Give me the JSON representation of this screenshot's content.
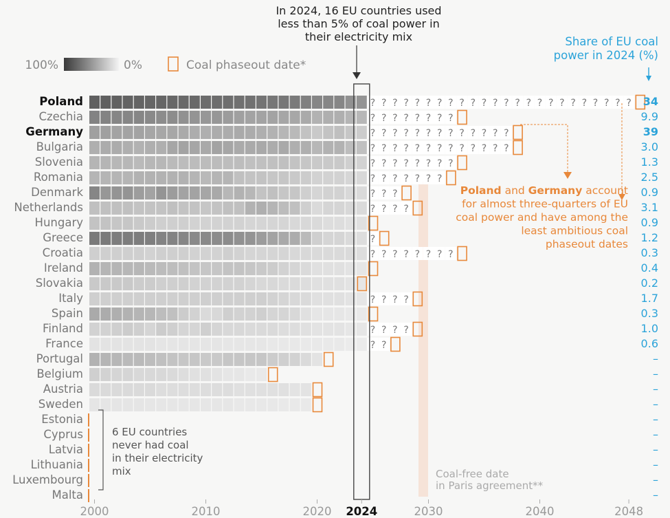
{
  "annotation_top": [
    "In 2024, 16 EU countries used",
    "less than 5% of coal power in",
    "their electricity mix"
  ],
  "share_header": [
    "Share of EU coal",
    "power in 2024 (%)"
  ],
  "legend": {
    "max_label": "100%",
    "min_label": "0%",
    "phaseout_label": "Coal phaseout date*"
  },
  "callout": {
    "lines": [
      [
        {
          "text": "Poland",
          "bold": true
        },
        {
          "text": " and ",
          "bold": false
        },
        {
          "text": "Germany",
          "bold": true
        },
        {
          "text": " account",
          "bold": false
        }
      ],
      [
        {
          "text": "for almost three-quarters of EU",
          "bold": false
        }
      ],
      [
        {
          "text": "coal power and have among the",
          "bold": false
        }
      ],
      [
        {
          "text": "least ambitious coal",
          "bold": false
        }
      ],
      [
        {
          "text": "phaseout dates",
          "bold": false
        }
      ]
    ]
  },
  "never_note": [
    "6 EU countries",
    "never had coal",
    "in their electricity",
    "mix"
  ],
  "paris_note": [
    "Coal-free date",
    "in Paris agreement**"
  ],
  "colors": {
    "accent": "#e8883a",
    "share": "#2ba3d9",
    "cell_dark": "#5a5a5a",
    "cell_light": "#ececec",
    "paris_band": "#f6e3d8"
  },
  "chart_data": {
    "type": "heatmap",
    "x_ticks": [
      "2000",
      "2010",
      "2020",
      "2024",
      "2030",
      "2040",
      "2048"
    ],
    "highlight_year": 2024,
    "paris_year": 2030,
    "value_scale": "coal share of electricity mix, 0 (light) to 1 (dark)",
    "countries": [
      {
        "name": "Poland",
        "bold": true,
        "phaseout": 2049,
        "share": "34",
        "intensity": [
          0.96,
          0.96,
          0.95,
          0.94,
          0.93,
          0.92,
          0.92,
          0.91,
          0.9,
          0.9,
          0.88,
          0.87,
          0.86,
          0.85,
          0.84,
          0.82,
          0.8,
          0.8,
          0.78,
          0.74,
          0.7,
          0.7,
          0.7,
          0.62,
          0.6
        ]
      },
      {
        "name": "Czechia",
        "bold": false,
        "phaseout": 2033,
        "share": "9.9",
        "intensity": [
          0.72,
          0.72,
          0.7,
          0.7,
          0.7,
          0.68,
          0.66,
          0.66,
          0.62,
          0.6,
          0.58,
          0.58,
          0.55,
          0.52,
          0.5,
          0.5,
          0.5,
          0.48,
          0.47,
          0.45,
          0.4,
          0.42,
          0.42,
          0.38,
          0.36
        ]
      },
      {
        "name": "Germany",
        "bold": true,
        "phaseout": 2038,
        "share": "39",
        "intensity": [
          0.52,
          0.52,
          0.5,
          0.5,
          0.5,
          0.48,
          0.47,
          0.47,
          0.45,
          0.43,
          0.42,
          0.44,
          0.44,
          0.45,
          0.44,
          0.42,
          0.4,
          0.37,
          0.35,
          0.29,
          0.24,
          0.28,
          0.31,
          0.26,
          0.22
        ]
      },
      {
        "name": "Bulgaria",
        "bold": false,
        "phaseout": 2038,
        "share": "3.0",
        "intensity": [
          0.42,
          0.44,
          0.44,
          0.42,
          0.4,
          0.42,
          0.42,
          0.48,
          0.5,
          0.48,
          0.46,
          0.5,
          0.48,
          0.45,
          0.45,
          0.46,
          0.44,
          0.46,
          0.42,
          0.42,
          0.36,
          0.4,
          0.4,
          0.32,
          0.3
        ]
      },
      {
        "name": "Slovenia",
        "bold": false,
        "phaseout": 2033,
        "share": "1.3",
        "intensity": [
          0.38,
          0.38,
          0.36,
          0.36,
          0.34,
          0.36,
          0.36,
          0.34,
          0.33,
          0.33,
          0.33,
          0.33,
          0.32,
          0.32,
          0.3,
          0.3,
          0.3,
          0.3,
          0.28,
          0.26,
          0.24,
          0.24,
          0.24,
          0.2,
          0.18
        ]
      },
      {
        "name": "Romania",
        "bold": false,
        "phaseout": 2032,
        "share": "2.5",
        "intensity": [
          0.38,
          0.38,
          0.38,
          0.38,
          0.4,
          0.4,
          0.4,
          0.4,
          0.4,
          0.38,
          0.35,
          0.38,
          0.38,
          0.3,
          0.28,
          0.28,
          0.26,
          0.26,
          0.24,
          0.22,
          0.18,
          0.18,
          0.18,
          0.15,
          0.14
        ]
      },
      {
        "name": "Denmark",
        "bold": false,
        "phaseout": 2028,
        "share": "0.9",
        "intensity": [
          0.7,
          0.58,
          0.6,
          0.6,
          0.54,
          0.5,
          0.6,
          0.55,
          0.5,
          0.5,
          0.48,
          0.46,
          0.36,
          0.4,
          0.36,
          0.28,
          0.3,
          0.26,
          0.26,
          0.2,
          0.16,
          0.18,
          0.18,
          0.14,
          0.12
        ]
      },
      {
        "name": "Netherlands",
        "bold": false,
        "phaseout": 2029,
        "share": "3.1",
        "intensity": [
          0.3,
          0.3,
          0.3,
          0.3,
          0.28,
          0.28,
          0.28,
          0.3,
          0.28,
          0.28,
          0.26,
          0.28,
          0.3,
          0.3,
          0.4,
          0.42,
          0.38,
          0.33,
          0.3,
          0.2,
          0.12,
          0.16,
          0.16,
          0.14,
          0.12
        ]
      },
      {
        "name": "Hungary",
        "bold": false,
        "phaseout": 2025,
        "share": "0.9",
        "intensity": [
          0.28,
          0.28,
          0.26,
          0.26,
          0.24,
          0.22,
          0.2,
          0.2,
          0.2,
          0.18,
          0.18,
          0.18,
          0.18,
          0.18,
          0.16,
          0.16,
          0.16,
          0.16,
          0.14,
          0.14,
          0.12,
          0.1,
          0.1,
          0.08,
          0.08
        ]
      },
      {
        "name": "Greece",
        "bold": false,
        "phaseout": 2026,
        "share": "1.2",
        "intensity": [
          0.78,
          0.78,
          0.76,
          0.76,
          0.76,
          0.75,
          0.72,
          0.72,
          0.7,
          0.68,
          0.68,
          0.66,
          0.66,
          0.62,
          0.6,
          0.55,
          0.5,
          0.46,
          0.44,
          0.34,
          0.2,
          0.16,
          0.16,
          0.12,
          0.1
        ]
      },
      {
        "name": "Croatia",
        "bold": false,
        "phaseout": 2033,
        "share": "0.3",
        "intensity": [
          0.2,
          0.2,
          0.2,
          0.2,
          0.2,
          0.18,
          0.2,
          0.2,
          0.2,
          0.18,
          0.18,
          0.18,
          0.2,
          0.18,
          0.16,
          0.16,
          0.16,
          0.16,
          0.14,
          0.14,
          0.12,
          0.12,
          0.12,
          0.12,
          0.1
        ]
      },
      {
        "name": "Ireland",
        "bold": false,
        "phaseout": 2025,
        "share": "0.4",
        "intensity": [
          0.4,
          0.38,
          0.38,
          0.36,
          0.36,
          0.34,
          0.33,
          0.32,
          0.3,
          0.28,
          0.26,
          0.26,
          0.28,
          0.28,
          0.26,
          0.24,
          0.22,
          0.18,
          0.16,
          0.12,
          0.08,
          0.08,
          0.08,
          0.06,
          0.04
        ]
      },
      {
        "name": "Slovakia",
        "bold": false,
        "phaseout": 2024,
        "share": "0.2",
        "intensity": [
          0.24,
          0.24,
          0.24,
          0.24,
          0.22,
          0.22,
          0.2,
          0.2,
          0.2,
          0.18,
          0.18,
          0.18,
          0.18,
          0.18,
          0.16,
          0.14,
          0.14,
          0.12,
          0.12,
          0.1,
          0.08,
          0.08,
          0.08,
          0.06,
          0.04
        ]
      },
      {
        "name": "Italy",
        "bold": false,
        "phaseout": 2029,
        "share": "1.7",
        "intensity": [
          0.2,
          0.2,
          0.2,
          0.2,
          0.2,
          0.2,
          0.2,
          0.2,
          0.2,
          0.2,
          0.2,
          0.2,
          0.2,
          0.2,
          0.2,
          0.2,
          0.18,
          0.16,
          0.14,
          0.12,
          0.08,
          0.08,
          0.08,
          0.06,
          0.04
        ]
      },
      {
        "name": "Spain",
        "bold": false,
        "phaseout": 2025,
        "share": "0.3",
        "intensity": [
          0.45,
          0.44,
          0.42,
          0.4,
          0.38,
          0.36,
          0.32,
          0.3,
          0.22,
          0.18,
          0.12,
          0.14,
          0.2,
          0.18,
          0.18,
          0.2,
          0.16,
          0.16,
          0.14,
          0.08,
          0.04,
          0.04,
          0.04,
          0.03,
          0.02
        ]
      },
      {
        "name": "Finland",
        "bold": false,
        "phaseout": 2029,
        "share": "1.0",
        "intensity": [
          0.18,
          0.18,
          0.2,
          0.22,
          0.2,
          0.16,
          0.22,
          0.2,
          0.16,
          0.16,
          0.2,
          0.16,
          0.14,
          0.14,
          0.12,
          0.12,
          0.12,
          0.1,
          0.1,
          0.08,
          0.06,
          0.06,
          0.06,
          0.04,
          0.04
        ]
      },
      {
        "name": "France",
        "bold": false,
        "phaseout": 2027,
        "share": "0.6",
        "intensity": [
          0.06,
          0.06,
          0.06,
          0.06,
          0.06,
          0.06,
          0.05,
          0.05,
          0.05,
          0.05,
          0.05,
          0.05,
          0.04,
          0.04,
          0.04,
          0.04,
          0.03,
          0.03,
          0.03,
          0.02,
          0.02,
          0.02,
          0.02,
          0.01,
          0.01
        ]
      },
      {
        "name": "Portugal",
        "bold": false,
        "phaseout": 2021,
        "share": "–",
        "intensity": [
          0.4,
          0.38,
          0.36,
          0.34,
          0.34,
          0.32,
          0.3,
          0.28,
          0.26,
          0.26,
          0.24,
          0.24,
          0.26,
          0.26,
          0.26,
          0.26,
          0.22,
          0.2,
          0.18,
          0.12,
          0.06
        ]
      },
      {
        "name": "Belgium",
        "bold": false,
        "phaseout": 2016,
        "share": "–",
        "intensity": [
          0.2,
          0.18,
          0.16,
          0.16,
          0.14,
          0.14,
          0.14,
          0.12,
          0.1,
          0.08,
          0.08,
          0.06,
          0.04,
          0.04,
          0.02,
          0.02
        ]
      },
      {
        "name": "Austria",
        "bold": false,
        "phaseout": 2020,
        "share": "–",
        "intensity": [
          0.12,
          0.12,
          0.12,
          0.12,
          0.12,
          0.12,
          0.1,
          0.1,
          0.1,
          0.1,
          0.1,
          0.1,
          0.1,
          0.08,
          0.08,
          0.08,
          0.08,
          0.08,
          0.06,
          0.06
        ]
      },
      {
        "name": "Sweden",
        "bold": false,
        "phaseout": 2020,
        "share": "–",
        "intensity": [
          0.05,
          0.05,
          0.05,
          0.05,
          0.05,
          0.04,
          0.04,
          0.04,
          0.04,
          0.04,
          0.04,
          0.04,
          0.04,
          0.03,
          0.03,
          0.03,
          0.03,
          0.02,
          0.02,
          0.02
        ]
      },
      {
        "name": "Estonia",
        "bold": false,
        "never": true,
        "share": "–"
      },
      {
        "name": "Cyprus",
        "bold": false,
        "never": true,
        "share": "–"
      },
      {
        "name": "Latvia",
        "bold": false,
        "never": true,
        "share": "–"
      },
      {
        "name": "Lithuania",
        "bold": false,
        "never": true,
        "share": "–"
      },
      {
        "name": "Luxembourg",
        "bold": false,
        "never": true,
        "share": "–"
      },
      {
        "name": "Malta",
        "bold": false,
        "never": true,
        "share": "–"
      }
    ]
  }
}
